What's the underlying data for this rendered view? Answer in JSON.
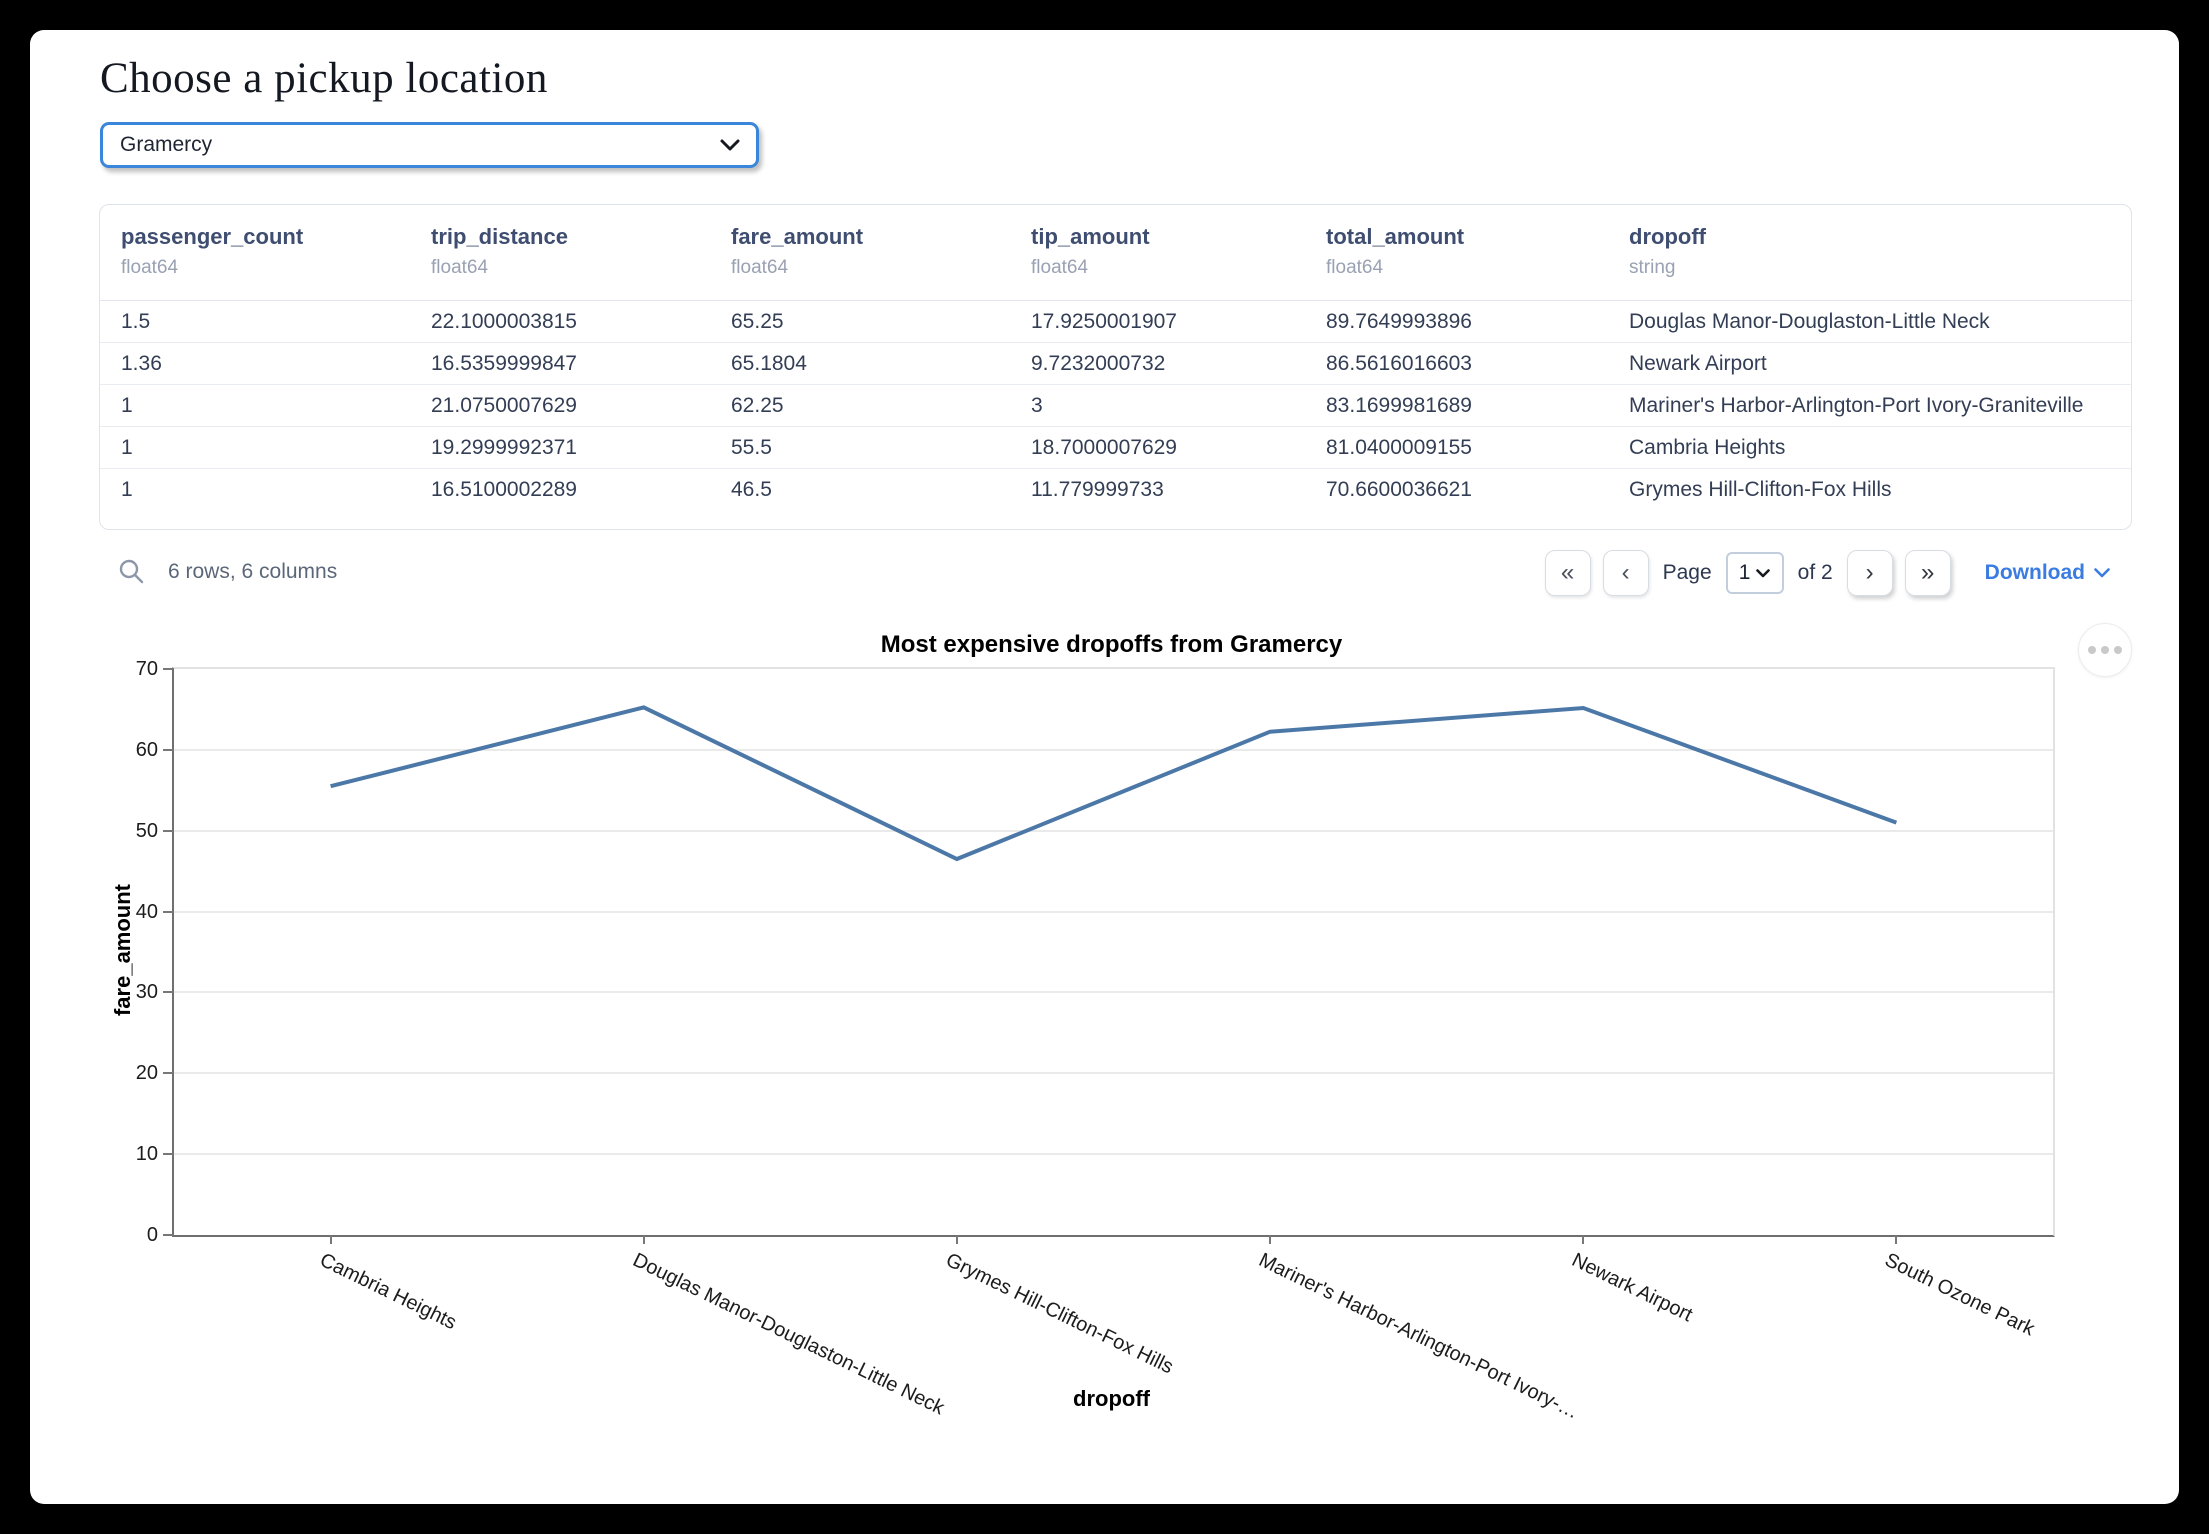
{
  "page": {
    "title": "Choose a pickup location"
  },
  "pickup_select": {
    "value": "Gramercy"
  },
  "table": {
    "columns": [
      {
        "name": "passenger_count",
        "type": "float64"
      },
      {
        "name": "trip_distance",
        "type": "float64"
      },
      {
        "name": "fare_amount",
        "type": "float64"
      },
      {
        "name": "tip_amount",
        "type": "float64"
      },
      {
        "name": "total_amount",
        "type": "float64"
      },
      {
        "name": "dropoff",
        "type": "string"
      }
    ],
    "rows": [
      [
        "1.5",
        "22.1000003815",
        "65.25",
        "17.9250001907",
        "89.7649993896",
        "Douglas Manor-Douglaston-Little Neck"
      ],
      [
        "1.36",
        "16.5359999847",
        "65.1804",
        "9.7232000732",
        "86.5616016603",
        "Newark Airport"
      ],
      [
        "1",
        "21.0750007629",
        "62.25",
        "3",
        "83.1699981689",
        "Mariner's Harbor-Arlington-Port Ivory-Graniteville"
      ],
      [
        "1",
        "19.2999992371",
        "55.5",
        "18.7000007629",
        "81.0400009155",
        "Cambria Heights"
      ],
      [
        "1",
        "16.5100002289",
        "46.5",
        "11.779999733",
        "70.6600036621",
        "Grymes Hill-Clifton-Fox Hills"
      ]
    ],
    "footer": {
      "summary": "6 rows, 6 columns",
      "first": "«",
      "prev": "‹",
      "next": "›",
      "last": "»",
      "page_label": "Page",
      "page_value": "1",
      "of_label": "of 2",
      "download_label": "Download"
    }
  },
  "chart_data": {
    "type": "line",
    "title": "Most expensive dropoffs from Gramercy",
    "categories": [
      "Cambria Heights",
      "Douglas Manor-Douglaston-Little Neck",
      "Grymes Hill-Clifton-Fox Hills",
      "Mariner's Harbor-Arlington-Port Ivory-Graniteville",
      "Newark Airport",
      "South Ozone Park"
    ],
    "tick_labels": [
      "Cambria Heights",
      "Douglas Manor-Douglaston-Little Neck",
      "Grymes Hill-Clifton-Fox Hills",
      "Mariner's Harbor-Arlington-Port Ivory-…",
      "Newark Airport",
      "South Ozone Park"
    ],
    "values": [
      55.5,
      65.25,
      46.5,
      62.25,
      65.1804,
      51.0
    ],
    "xlabel": "dropoff",
    "ylabel": "fare_amount",
    "ylim": [
      0,
      70
    ],
    "yticks": [
      0,
      10,
      20,
      30,
      40,
      50,
      60,
      70
    ],
    "grid": true,
    "legend": false,
    "line_color": "#4c78a8"
  },
  "colors": {
    "accent_blue": "#3a86db",
    "link_blue": "#3b7ce2",
    "line_blue": "#4c78a8",
    "header_text": "#3e4d70"
  },
  "icons": {
    "search": "magnifier",
    "select_chevron": "chevron-down",
    "menu": "ellipsis"
  }
}
